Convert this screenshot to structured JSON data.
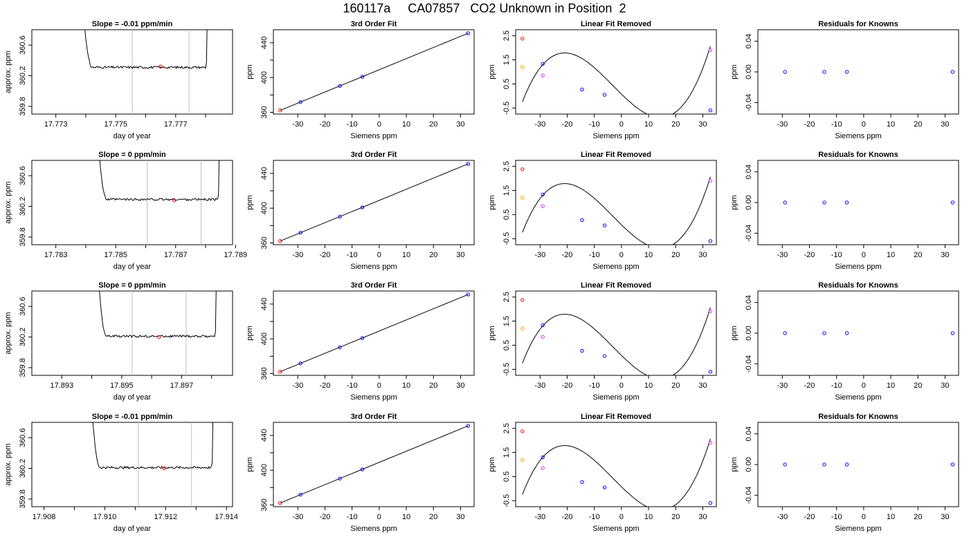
{
  "title": "160117a     CA07857   CO2 Unknown in Position  2",
  "colors": {
    "frame": "#000000",
    "line": "#000000",
    "vline": "#bebebe",
    "red": "#ff0000",
    "blue": "#0000ff",
    "orange": "#ffa500",
    "magenta": "#cc33ff"
  },
  "chart_data": [
    {
      "type": "line",
      "title": "Slope =  -0.01  ppm/min",
      "xlabel": "day of year",
      "ylabel": "approx. ppm",
      "xlim": [
        17.7722,
        17.7789
      ],
      "ylim": [
        359.7,
        360.8
      ],
      "xticks": [
        17.773,
        17.774,
        17.775,
        17.776,
        17.777,
        17.778
      ],
      "xtick_labels": [
        "17.773",
        "",
        "17.775",
        "",
        "17.777",
        ""
      ],
      "yticks": [
        359.8,
        360.2,
        360.6
      ],
      "ytick_labels": [
        "359.8",
        "360.2",
        "360.6"
      ],
      "trace": {
        "x0": 17.77385,
        "x1": 17.778,
        "level": 360.31,
        "noise": 0.015,
        "ramp_top": 361.5
      },
      "vlines": [
        17.77555,
        17.77745
      ],
      "marker": {
        "x": 17.7765,
        "y": 360.32
      }
    },
    {
      "type": "scatter",
      "title": "3rd Order Fit",
      "xlabel": "Siemens ppm",
      "ylabel": "ppm",
      "xlim": [
        -39,
        35
      ],
      "ylim": [
        358,
        455
      ],
      "xticks": [
        -30,
        -20,
        -10,
        0,
        10,
        20,
        30
      ],
      "xtick_labels": [
        "-30",
        "-20",
        "-10",
        "0",
        "10",
        "20",
        "30"
      ],
      "yticks": [
        360,
        400,
        440
      ],
      "ytick_labels": [
        "360",
        "400",
        "440"
      ],
      "minor_yticks": [
        380,
        420
      ],
      "curve": {
        "kind": "line",
        "x": [
          -36.5,
          32.8
        ],
        "y": [
          362.2,
          451
        ]
      },
      "points": [
        {
          "x": -36.5,
          "y": 362.2,
          "color": "red"
        },
        {
          "x": -29,
          "y": 371.8,
          "color": "blue"
        },
        {
          "x": -14.5,
          "y": 390.3,
          "color": "blue"
        },
        {
          "x": -6.2,
          "y": 400.9,
          "color": "blue"
        },
        {
          "x": 32.8,
          "y": 451,
          "color": "blue"
        }
      ]
    },
    {
      "type": "scatter",
      "title": "Linear Fit Removed",
      "xlabel": "Siemens ppm",
      "ylabel": "ppm",
      "xlim": [
        -39,
        35
      ],
      "ylim": [
        -0.75,
        2.75
      ],
      "xticks": [
        -30,
        -20,
        -10,
        0,
        10,
        20,
        30
      ],
      "xtick_labels": [
        "-30",
        "-20",
        "-10",
        "0",
        "10",
        "20",
        "30"
      ],
      "yticks": [
        -0.5,
        0.5,
        1.5,
        2.5
      ],
      "ytick_labels": [
        "-0.5",
        "0.5",
        "1.5",
        "2.5"
      ],
      "curve": {
        "kind": "poly",
        "x0": -36.5,
        "x1": 32.8,
        "y0": 2.6,
        "y1": -0.6,
        "coef": [
          0.078,
          -0.11,
          0.0012,
          0.000122
        ]
      },
      "points": [
        {
          "x": -36.5,
          "y": 2.38,
          "color": "red"
        },
        {
          "x": -36.5,
          "y": 1.2,
          "color": "orange"
        },
        {
          "x": -29,
          "y": 1.33,
          "color": "blue"
        },
        {
          "x": -29,
          "y": 0.85,
          "color": "magenta"
        },
        {
          "x": -14.5,
          "y": 0.27,
          "color": "blue"
        },
        {
          "x": -6.2,
          "y": 0.05,
          "color": "blue"
        },
        {
          "x": 32.8,
          "y": -0.6,
          "color": "blue"
        },
        {
          "x": 32.8,
          "y": 1.9,
          "color": "magenta"
        }
      ]
    },
    {
      "type": "scatter",
      "title": "Residuals for Knowns",
      "xlabel": "Siemens ppm",
      "ylabel": "ppm",
      "xlim": [
        -39,
        35
      ],
      "ylim": [
        -0.055,
        0.055
      ],
      "xticks": [
        -30,
        -20,
        -10,
        0,
        10,
        20,
        30
      ],
      "xtick_labels": [
        "-30",
        "-20",
        "-10",
        "0",
        "10",
        "20",
        "30"
      ],
      "yticks": [
        -0.04,
        0,
        0.04
      ],
      "ytick_labels": [
        "-0.04",
        "0.00",
        "0.04"
      ],
      "points": [
        {
          "x": -29,
          "y": 0,
          "color": "blue"
        },
        {
          "x": -14.5,
          "y": 0,
          "color": "blue"
        },
        {
          "x": -6.2,
          "y": 0,
          "color": "blue"
        },
        {
          "x": 32.8,
          "y": 0,
          "color": "blue"
        }
      ]
    },
    {
      "type": "line",
      "title": "Slope =  0  ppm/min",
      "xlabel": "day of year",
      "ylabel": "approx. ppm",
      "xlim": [
        17.7822,
        17.7889
      ],
      "ylim": [
        359.7,
        360.8
      ],
      "xticks": [
        17.783,
        17.784,
        17.785,
        17.786,
        17.787,
        17.788,
        17.789
      ],
      "xtick_labels": [
        "17.783",
        "",
        "17.785",
        "",
        "17.787",
        "",
        "17.789"
      ],
      "yticks": [
        359.8,
        360.2,
        360.6
      ],
      "ytick_labels": [
        "359.8",
        "360.2",
        "360.6"
      ],
      "trace": {
        "x0": 17.78435,
        "x1": 17.7884,
        "level": 360.29,
        "noise": 0.015,
        "ramp_top": 361.5
      },
      "vlines": [
        17.78605,
        17.78785
      ],
      "marker": {
        "x": 17.78695,
        "y": 360.28
      }
    },
    {
      "type": "scatter",
      "title": "3rd Order Fit",
      "xlabel": "Siemens ppm",
      "ylabel": "ppm",
      "xlim": [
        -39,
        35
      ],
      "ylim": [
        358,
        455
      ],
      "xticks": [
        -30,
        -20,
        -10,
        0,
        10,
        20,
        30
      ],
      "xtick_labels": [
        "-30",
        "-20",
        "-10",
        "0",
        "10",
        "20",
        "30"
      ],
      "yticks": [
        360,
        400,
        440
      ],
      "ytick_labels": [
        "360",
        "400",
        "440"
      ],
      "minor_yticks": [
        380,
        420
      ],
      "curve": {
        "kind": "line",
        "x": [
          -36.5,
          32.8
        ],
        "y": [
          362.2,
          451
        ]
      },
      "points": [
        {
          "x": -36.5,
          "y": 362.2,
          "color": "red"
        },
        {
          "x": -29,
          "y": 371.8,
          "color": "blue"
        },
        {
          "x": -14.5,
          "y": 390.3,
          "color": "blue"
        },
        {
          "x": -6.2,
          "y": 400.9,
          "color": "blue"
        },
        {
          "x": 32.8,
          "y": 451,
          "color": "blue"
        }
      ]
    },
    {
      "type": "scatter",
      "title": "Linear Fit Removed",
      "xlabel": "Siemens ppm",
      "ylabel": "ppm",
      "xlim": [
        -39,
        35
      ],
      "ylim": [
        -0.75,
        2.75
      ],
      "xticks": [
        -30,
        -20,
        -10,
        0,
        10,
        20,
        30
      ],
      "xtick_labels": [
        "-30",
        "-20",
        "-10",
        "0",
        "10",
        "20",
        "30"
      ],
      "yticks": [
        -0.5,
        0.5,
        1.5,
        2.5
      ],
      "ytick_labels": [
        "-0.5",
        "0.5",
        "1.5",
        "2.5"
      ],
      "curve": {
        "kind": "poly",
        "x0": -36.5,
        "x1": 32.8,
        "y0": 2.6,
        "y1": -0.6,
        "coef": [
          0.078,
          -0.11,
          0.0012,
          0.000122
        ]
      },
      "points": [
        {
          "x": -36.5,
          "y": 2.38,
          "color": "red"
        },
        {
          "x": -36.5,
          "y": 1.2,
          "color": "orange"
        },
        {
          "x": -29,
          "y": 1.33,
          "color": "blue"
        },
        {
          "x": -29,
          "y": 0.85,
          "color": "magenta"
        },
        {
          "x": -14.5,
          "y": 0.27,
          "color": "blue"
        },
        {
          "x": -6.2,
          "y": 0.05,
          "color": "blue"
        },
        {
          "x": 32.8,
          "y": -0.6,
          "color": "blue"
        },
        {
          "x": 32.8,
          "y": 1.9,
          "color": "magenta"
        }
      ]
    },
    {
      "type": "scatter",
      "title": "Residuals for Knowns",
      "xlabel": "Siemens ppm",
      "ylabel": "ppm",
      "xlim": [
        -39,
        35
      ],
      "ylim": [
        -0.055,
        0.055
      ],
      "xticks": [
        -30,
        -20,
        -10,
        0,
        10,
        20,
        30
      ],
      "xtick_labels": [
        "-30",
        "-20",
        "-10",
        "0",
        "10",
        "20",
        "30"
      ],
      "yticks": [
        -0.04,
        0,
        0.04
      ],
      "ytick_labels": [
        "-0.04",
        "0.00",
        "0.04"
      ],
      "points": [
        {
          "x": -29,
          "y": 0,
          "color": "blue"
        },
        {
          "x": -14.5,
          "y": 0,
          "color": "blue"
        },
        {
          "x": -6.2,
          "y": 0,
          "color": "blue"
        },
        {
          "x": 32.8,
          "y": 0,
          "color": "blue"
        }
      ]
    },
    {
      "type": "line",
      "title": "Slope =  0  ppm/min",
      "xlabel": "day of year",
      "ylabel": "approx. ppm",
      "xlim": [
        17.892,
        17.8987
      ],
      "ylim": [
        359.7,
        360.8
      ],
      "xticks": [
        17.893,
        17.894,
        17.895,
        17.896,
        17.897,
        17.898
      ],
      "xtick_labels": [
        "17.893",
        "",
        "17.895",
        "",
        "17.897",
        ""
      ],
      "yticks": [
        359.8,
        360.2,
        360.6
      ],
      "ytick_labels": [
        "359.8",
        "360.2",
        "360.6"
      ],
      "trace": {
        "x0": 17.89415,
        "x1": 17.8981,
        "level": 360.21,
        "noise": 0.015,
        "ramp_top": 361.5
      },
      "vlines": [
        17.89535,
        17.89715
      ],
      "marker": {
        "x": 17.89625,
        "y": 360.2
      }
    },
    {
      "type": "scatter",
      "title": "3rd Order Fit",
      "xlabel": "Siemens ppm",
      "ylabel": "ppm",
      "xlim": [
        -39,
        35
      ],
      "ylim": [
        358,
        455
      ],
      "xticks": [
        -30,
        -20,
        -10,
        0,
        10,
        20,
        30
      ],
      "xtick_labels": [
        "-30",
        "-20",
        "-10",
        "0",
        "10",
        "20",
        "30"
      ],
      "yticks": [
        360,
        400,
        440
      ],
      "ytick_labels": [
        "360",
        "400",
        "440"
      ],
      "minor_yticks": [
        380,
        420
      ],
      "curve": {
        "kind": "line",
        "x": [
          -36.5,
          32.8
        ],
        "y": [
          362.2,
          451
        ]
      },
      "points": [
        {
          "x": -36.5,
          "y": 362.2,
          "color": "red"
        },
        {
          "x": -29,
          "y": 371.8,
          "color": "blue"
        },
        {
          "x": -14.5,
          "y": 390.3,
          "color": "blue"
        },
        {
          "x": -6.2,
          "y": 400.9,
          "color": "blue"
        },
        {
          "x": 32.8,
          "y": 451,
          "color": "blue"
        }
      ]
    },
    {
      "type": "scatter",
      "title": "Linear Fit Removed",
      "xlabel": "Siemens ppm",
      "ylabel": "ppm",
      "xlim": [
        -39,
        35
      ],
      "ylim": [
        -0.75,
        2.75
      ],
      "xticks": [
        -30,
        -20,
        -10,
        0,
        10,
        20,
        30
      ],
      "xtick_labels": [
        "-30",
        "-20",
        "-10",
        "0",
        "10",
        "20",
        "30"
      ],
      "yticks": [
        -0.5,
        0.5,
        1.5,
        2.5
      ],
      "ytick_labels": [
        "-0.5",
        "0.5",
        "1.5",
        "2.5"
      ],
      "curve": {
        "kind": "poly",
        "x0": -36.5,
        "x1": 32.8,
        "y0": 2.6,
        "y1": -0.6,
        "coef": [
          0.078,
          -0.11,
          0.0012,
          0.000122
        ]
      },
      "points": [
        {
          "x": -36.5,
          "y": 2.38,
          "color": "red"
        },
        {
          "x": -36.5,
          "y": 1.2,
          "color": "orange"
        },
        {
          "x": -29,
          "y": 1.33,
          "color": "blue"
        },
        {
          "x": -29,
          "y": 0.85,
          "color": "magenta"
        },
        {
          "x": -14.5,
          "y": 0.27,
          "color": "blue"
        },
        {
          "x": -6.2,
          "y": 0.05,
          "color": "blue"
        },
        {
          "x": 32.8,
          "y": -0.6,
          "color": "blue"
        },
        {
          "x": 32.8,
          "y": 1.9,
          "color": "magenta"
        }
      ]
    },
    {
      "type": "scatter",
      "title": "Residuals for Knowns",
      "xlabel": "Siemens ppm",
      "ylabel": "ppm",
      "xlim": [
        -39,
        35
      ],
      "ylim": [
        -0.055,
        0.055
      ],
      "xticks": [
        -30,
        -20,
        -10,
        0,
        10,
        20,
        30
      ],
      "xtick_labels": [
        "-30",
        "-20",
        "-10",
        "0",
        "10",
        "20",
        "30"
      ],
      "yticks": [
        -0.04,
        0,
        0.04
      ],
      "ytick_labels": [
        "-0.04",
        "0.00",
        "0.04"
      ],
      "points": [
        {
          "x": -29,
          "y": 0,
          "color": "blue"
        },
        {
          "x": -14.5,
          "y": 0,
          "color": "blue"
        },
        {
          "x": -6.2,
          "y": 0,
          "color": "blue"
        },
        {
          "x": 32.8,
          "y": 0,
          "color": "blue"
        }
      ]
    },
    {
      "type": "line",
      "title": "Slope =  -0.01  ppm/min",
      "xlabel": "day of year",
      "ylabel": "approx. ppm",
      "xlim": [
        17.9076,
        17.9142
      ],
      "ylim": [
        359.7,
        360.8
      ],
      "xticks": [
        17.908,
        17.909,
        17.91,
        17.911,
        17.912,
        17.913,
        17.914
      ],
      "xtick_labels": [
        "17.908",
        "",
        "17.910",
        "",
        "17.912",
        "",
        "17.914"
      ],
      "yticks": [
        359.8,
        360.2,
        360.6
      ],
      "ytick_labels": [
        "359.8",
        "360.2",
        "360.6"
      ],
      "trace": {
        "x0": 17.9095,
        "x1": 17.9135,
        "level": 360.21,
        "noise": 0.015,
        "ramp_top": 361.5
      },
      "vlines": [
        17.9111,
        17.91285
      ],
      "marker": {
        "x": 17.91195,
        "y": 360.2
      }
    },
    {
      "type": "scatter",
      "title": "3rd Order Fit",
      "xlabel": "Siemens ppm",
      "ylabel": "ppm",
      "xlim": [
        -39,
        35
      ],
      "ylim": [
        358,
        455
      ],
      "xticks": [
        -30,
        -20,
        -10,
        0,
        10,
        20,
        30
      ],
      "xtick_labels": [
        "-30",
        "-20",
        "-10",
        "0",
        "10",
        "20",
        "30"
      ],
      "yticks": [
        360,
        400,
        440
      ],
      "ytick_labels": [
        "360",
        "400",
        "440"
      ],
      "minor_yticks": [
        380,
        420
      ],
      "curve": {
        "kind": "line",
        "x": [
          -36.5,
          32.8
        ],
        "y": [
          362.2,
          451
        ]
      },
      "points": [
        {
          "x": -36.5,
          "y": 362.2,
          "color": "red"
        },
        {
          "x": -29,
          "y": 371.8,
          "color": "blue"
        },
        {
          "x": -14.5,
          "y": 390.3,
          "color": "blue"
        },
        {
          "x": -6.2,
          "y": 400.9,
          "color": "blue"
        },
        {
          "x": 32.8,
          "y": 451,
          "color": "blue"
        }
      ]
    },
    {
      "type": "scatter",
      "title": "Linear Fit Removed",
      "xlabel": "Siemens ppm",
      "ylabel": "ppm",
      "xlim": [
        -39,
        35
      ],
      "ylim": [
        -0.75,
        2.75
      ],
      "xticks": [
        -30,
        -20,
        -10,
        0,
        10,
        20,
        30
      ],
      "xtick_labels": [
        "-30",
        "-20",
        "-10",
        "0",
        "10",
        "20",
        "30"
      ],
      "yticks": [
        -0.5,
        0.5,
        1.5,
        2.5
      ],
      "ytick_labels": [
        "-0.5",
        "0.5",
        "1.5",
        "2.5"
      ],
      "curve": {
        "kind": "poly",
        "x0": -36.5,
        "x1": 32.8,
        "y0": 2.6,
        "y1": -0.6,
        "coef": [
          0.078,
          -0.11,
          0.0012,
          0.000122
        ]
      },
      "points": [
        {
          "x": -36.5,
          "y": 2.38,
          "color": "red"
        },
        {
          "x": -36.5,
          "y": 1.2,
          "color": "orange"
        },
        {
          "x": -29,
          "y": 1.3,
          "color": "blue"
        },
        {
          "x": -29,
          "y": 0.85,
          "color": "magenta"
        },
        {
          "x": -14.5,
          "y": 0.27,
          "color": "blue"
        },
        {
          "x": -6.2,
          "y": 0.05,
          "color": "blue"
        },
        {
          "x": 32.8,
          "y": -0.6,
          "color": "blue"
        },
        {
          "x": 32.8,
          "y": 1.9,
          "color": "magenta"
        }
      ]
    },
    {
      "type": "scatter",
      "title": "Residuals for Knowns",
      "xlabel": "Siemens ppm",
      "ylabel": "ppm",
      "xlim": [
        -39,
        35
      ],
      "ylim": [
        -0.055,
        0.055
      ],
      "xticks": [
        -30,
        -20,
        -10,
        0,
        10,
        20,
        30
      ],
      "xtick_labels": [
        "-30",
        "-20",
        "-10",
        "0",
        "10",
        "20",
        "30"
      ],
      "yticks": [
        -0.04,
        0,
        0.04
      ],
      "ytick_labels": [
        "-0.04",
        "0.00",
        "0.04"
      ],
      "points": [
        {
          "x": -29,
          "y": 0,
          "color": "blue"
        },
        {
          "x": -14.5,
          "y": 0,
          "color": "blue"
        },
        {
          "x": -6.2,
          "y": 0,
          "color": "blue"
        },
        {
          "x": 32.8,
          "y": 0,
          "color": "blue"
        }
      ]
    }
  ]
}
